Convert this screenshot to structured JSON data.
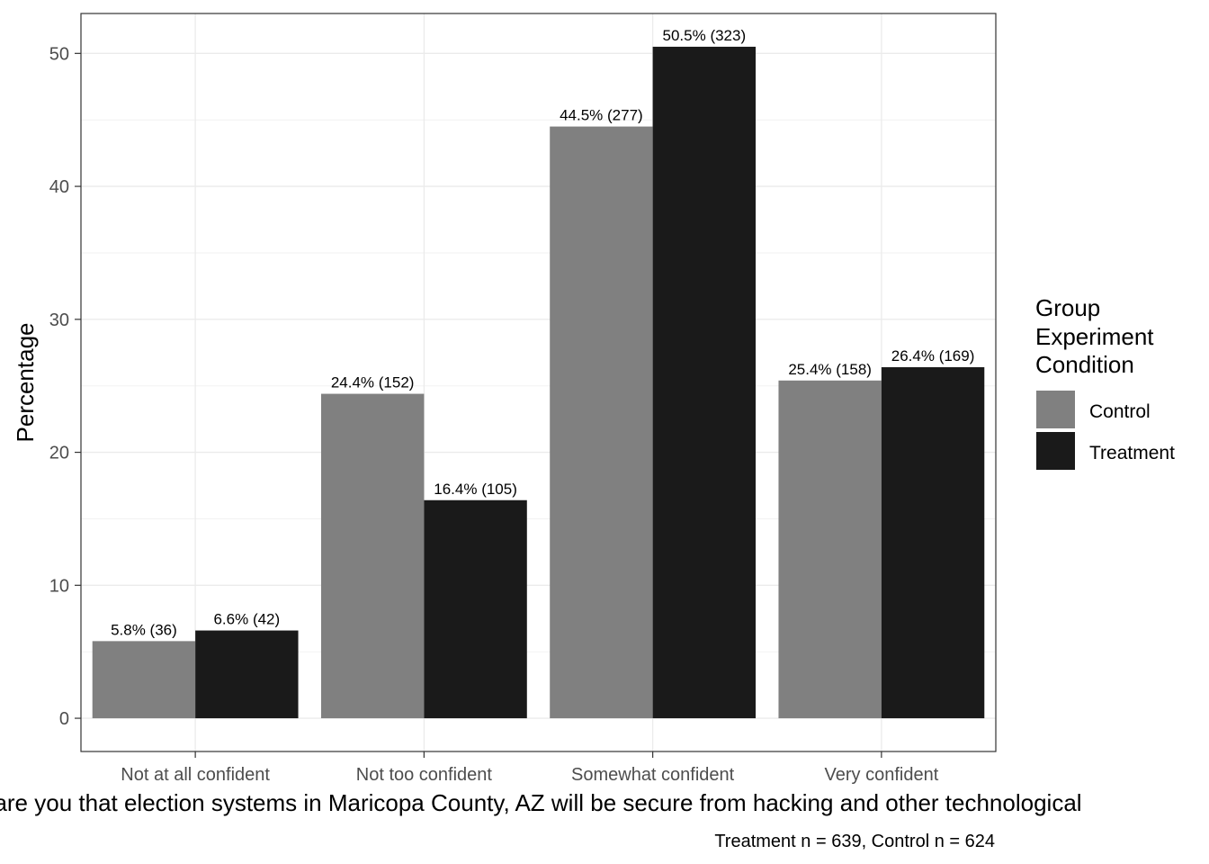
{
  "chart_data": {
    "type": "bar",
    "categories": [
      "Not at all confident",
      "Not too confident",
      "Somewhat confident",
      "Very confident"
    ],
    "series": [
      {
        "name": "Control",
        "color": "#808080",
        "values": [
          5.8,
          24.4,
          44.5,
          25.4
        ],
        "labels": [
          "5.8% (36)",
          "24.4% (152)",
          "44.5% (277)",
          "25.4% (158)"
        ]
      },
      {
        "name": "Treatment",
        "color": "#1a1a1a",
        "values": [
          6.6,
          16.4,
          50.5,
          26.4
        ],
        "labels": [
          "6.6% (42)",
          "16.4% (105)",
          "50.5% (323)",
          "26.4% (169)"
        ]
      }
    ],
    "xlabel": "are you that election systems in Maricopa County, AZ will be secure from hacking and other technological",
    "ylabel": "Percentage",
    "caption": "Treatment n = 639, Control n = 624",
    "ylim": [
      -2.5,
      53
    ],
    "yticks": [
      0,
      10,
      20,
      30,
      40,
      50
    ],
    "grid": true,
    "legend": {
      "title_lines": [
        "Group",
        "Experiment",
        "Condition"
      ],
      "placement": "right"
    }
  }
}
